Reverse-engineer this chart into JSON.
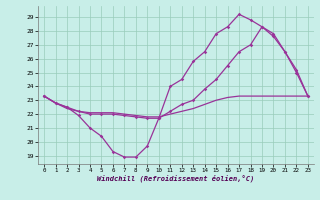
{
  "xlabel": "Windchill (Refroidissement éolien,°C)",
  "bg_color": "#c8eee8",
  "line_color": "#993399",
  "grid_color": "#99ccbb",
  "x_ticks": [
    0,
    1,
    2,
    3,
    4,
    5,
    6,
    7,
    8,
    9,
    10,
    11,
    12,
    13,
    14,
    15,
    16,
    17,
    18,
    19,
    20,
    21,
    22,
    23
  ],
  "y_ticks": [
    19,
    20,
    21,
    22,
    23,
    24,
    25,
    26,
    27,
    28,
    29
  ],
  "ylim": [
    18.4,
    29.8
  ],
  "xlim": [
    -0.5,
    23.5
  ],
  "line1_y": [
    23.3,
    22.8,
    22.5,
    21.9,
    21.0,
    20.4,
    19.3,
    18.9,
    18.9,
    19.7,
    21.7,
    24.0,
    24.5,
    25.8,
    26.5,
    27.8,
    28.3,
    29.2,
    28.8,
    28.3,
    27.6,
    26.5,
    25.0,
    23.3
  ],
  "line2_y": [
    23.3,
    22.8,
    22.5,
    22.2,
    22.0,
    22.0,
    22.0,
    21.9,
    21.8,
    21.7,
    21.7,
    22.2,
    22.7,
    23.0,
    23.8,
    24.5,
    25.5,
    26.5,
    27.0,
    28.3,
    27.8,
    26.5,
    25.2,
    23.3
  ],
  "line3_y": [
    23.3,
    22.8,
    22.4,
    22.2,
    22.1,
    22.1,
    22.1,
    22.0,
    21.9,
    21.8,
    21.8,
    22.0,
    22.2,
    22.4,
    22.7,
    23.0,
    23.2,
    23.3,
    23.3,
    23.3,
    23.3,
    23.3,
    23.3,
    23.3
  ]
}
